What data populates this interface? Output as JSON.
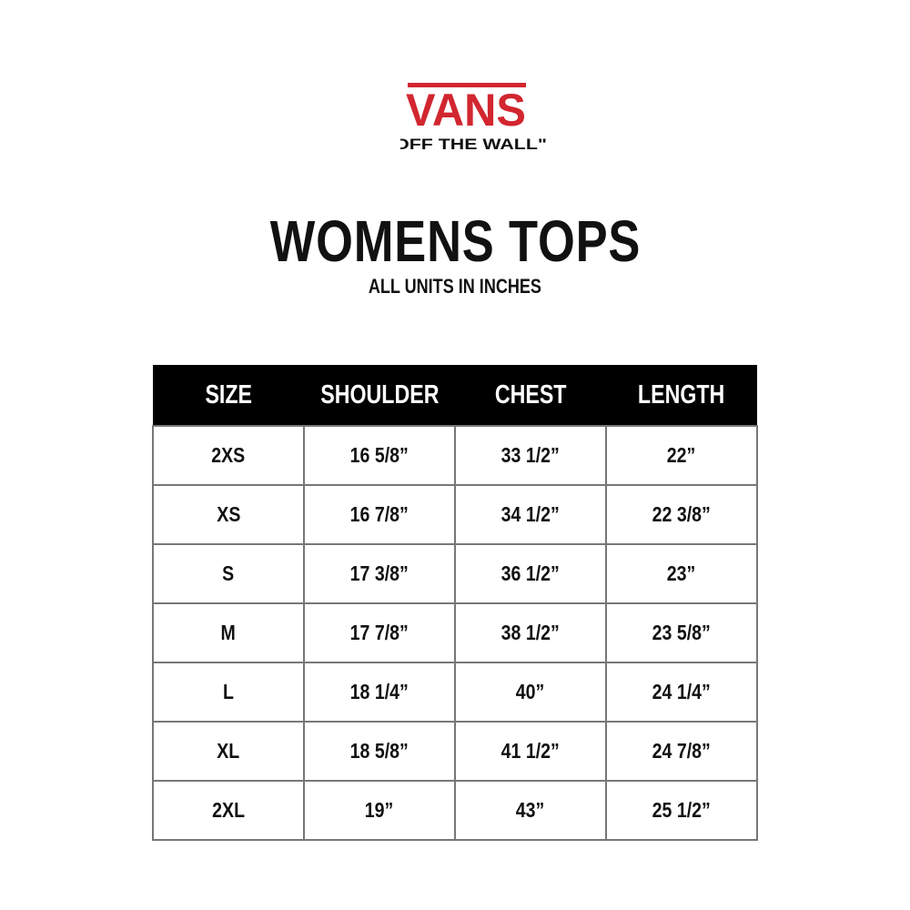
{
  "brand": {
    "logo_text": "VANS",
    "tagline": "\"OFF THE WALL\"",
    "brand_color": "#d22630"
  },
  "title": "WOMENS TOPS",
  "subtitle": "ALL UNITS IN INCHES",
  "table": {
    "headers": [
      "SIZE",
      "SHOULDER",
      "CHEST",
      "LENGTH"
    ],
    "rows": [
      [
        "2XS",
        "16 5/8”",
        "33 1/2”",
        "22”"
      ],
      [
        "XS",
        "16 7/8”",
        "34 1/2”",
        "22 3/8”"
      ],
      [
        "S",
        "17 3/8”",
        "36 1/2”",
        "23”"
      ],
      [
        "M",
        "17 7/8”",
        "38 1/2”",
        "23 5/8”"
      ],
      [
        "L",
        "18 1/4”",
        "40”",
        "24 1/4”"
      ],
      [
        "XL",
        "18 5/8”",
        "41 1/2”",
        "24 7/8”"
      ],
      [
        "2XL",
        "19”",
        "43”",
        "25 1/2”"
      ]
    ]
  }
}
